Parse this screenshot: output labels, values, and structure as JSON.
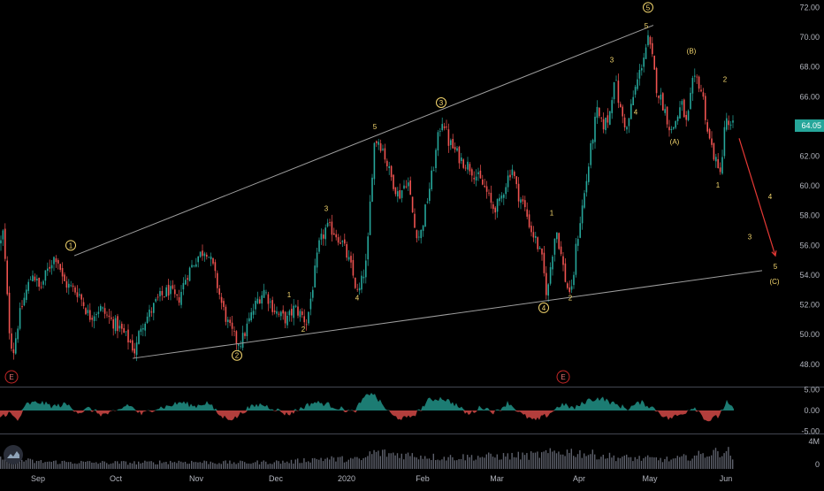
{
  "colors": {
    "background": "#000000",
    "up": "#26a69a",
    "down": "#ef5350",
    "wave": "#f5d76e",
    "trendline": "#9e9e9e",
    "projection": "#e53935",
    "price_badge": "#26a69a",
    "axis_text": "#b2b5be"
  },
  "icons": {
    "logo": "tradingview-logo-icon",
    "earnings": "earnings-E-icon"
  },
  "current_price": "64.05",
  "earnings_marker": "E",
  "chart_data": [
    {
      "type": "candlestick",
      "ylim": [
        46.5,
        72.5
      ],
      "x_labels": [
        "Sep",
        "Oct",
        "Nov",
        "Dec",
        "2020",
        "Feb",
        "Mar",
        "Apr",
        "May",
        "Jun"
      ],
      "y_ticks": [
        "72.00",
        "70.00",
        "68.00",
        "66.00",
        "64.00",
        "62.00",
        "60.00",
        "58.00",
        "56.00",
        "54.00",
        "52.00",
        "50.00",
        "48.00"
      ],
      "price_path": [
        [
          0,
          56.2
        ],
        [
          3,
          57.0
        ],
        [
          6,
          53.5
        ],
        [
          10,
          50.0
        ],
        [
          14,
          48.8
        ],
        [
          20,
          51.0
        ],
        [
          28,
          52.8
        ],
        [
          36,
          54.2
        ],
        [
          44,
          53.0
        ],
        [
          52,
          54.2
        ],
        [
          58,
          55.0
        ],
        [
          62,
          55.3
        ],
        [
          66,
          54.8
        ],
        [
          70,
          53.6
        ],
        [
          78,
          53.2
        ],
        [
          88,
          52.8
        ],
        [
          100,
          51.2
        ],
        [
          112,
          51.8
        ],
        [
          124,
          51.0
        ],
        [
          136,
          50.3
        ],
        [
          146,
          49.5
        ],
        [
          152,
          48.8
        ],
        [
          158,
          50.6
        ],
        [
          168,
          51.4
        ],
        [
          178,
          52.4
        ],
        [
          190,
          53.0
        ],
        [
          200,
          52.2
        ],
        [
          210,
          54.0
        ],
        [
          222,
          55.2
        ],
        [
          232,
          55.8
        ],
        [
          240,
          54.5
        ],
        [
          250,
          52.0
        ],
        [
          258,
          50.5
        ],
        [
          266,
          49.6
        ],
        [
          272,
          49.5
        ],
        [
          280,
          50.8
        ],
        [
          290,
          52.3
        ],
        [
          298,
          53.0
        ],
        [
          306,
          52.0
        ],
        [
          314,
          51.3
        ],
        [
          324,
          51.0
        ],
        [
          332,
          51.8
        ],
        [
          340,
          51.3
        ],
        [
          346,
          50.8
        ],
        [
          352,
          53.0
        ],
        [
          360,
          56.0
        ],
        [
          368,
          57.2
        ],
        [
          376,
          57.0
        ],
        [
          386,
          56.2
        ],
        [
          396,
          54.5
        ],
        [
          404,
          52.6
        ],
        [
          414,
          55.0
        ],
        [
          418,
          59.2
        ],
        [
          422,
          62.8
        ],
        [
          426,
          63.2
        ],
        [
          432,
          62.5
        ],
        [
          440,
          60.8
        ],
        [
          450,
          59.3
        ],
        [
          460,
          60.5
        ],
        [
          468,
          57.2
        ],
        [
          474,
          56.5
        ],
        [
          482,
          59.0
        ],
        [
          490,
          61.5
        ],
        [
          496,
          63.8
        ],
        [
          500,
          64.6
        ],
        [
          506,
          63.0
        ],
        [
          512,
          62.5
        ],
        [
          520,
          61.8
        ],
        [
          530,
          61.3
        ],
        [
          540,
          60.5
        ],
        [
          548,
          59.8
        ],
        [
          556,
          58.5
        ],
        [
          564,
          58.8
        ],
        [
          570,
          60.0
        ],
        [
          578,
          61.3
        ],
        [
          584,
          59.6
        ],
        [
          592,
          58.6
        ],
        [
          600,
          57.0
        ],
        [
          606,
          56.2
        ],
        [
          612,
          55.0
        ],
        [
          618,
          52.5
        ],
        [
          622,
          54.8
        ],
        [
          628,
          57.2
        ],
        [
          634,
          55.2
        ],
        [
          640,
          53.2
        ],
        [
          646,
          52.8
        ],
        [
          650,
          55.6
        ],
        [
          656,
          58.0
        ],
        [
          662,
          60.2
        ],
        [
          668,
          62.8
        ],
        [
          674,
          65.0
        ],
        [
          680,
          64.0
        ],
        [
          688,
          64.6
        ],
        [
          694,
          67.5
        ],
        [
          700,
          65.2
        ],
        [
          708,
          63.8
        ],
        [
          716,
          66.2
        ],
        [
          722,
          67.5
        ],
        [
          728,
          69.0
        ],
        [
          732,
          69.8
        ],
        [
          736,
          68.8
        ],
        [
          742,
          66.5
        ],
        [
          750,
          65.3
        ],
        [
          758,
          63.6
        ],
        [
          764,
          64.5
        ],
        [
          770,
          65.5
        ],
        [
          776,
          64.0
        ],
        [
          782,
          66.8
        ],
        [
          788,
          67.2
        ],
        [
          794,
          66.0
        ],
        [
          800,
          63.4
        ],
        [
          806,
          62.2
        ],
        [
          812,
          60.8
        ],
        [
          816,
          62.0
        ],
        [
          820,
          64.8
        ],
        [
          824,
          63.6
        ],
        [
          828,
          64.1
        ]
      ],
      "volume_profile": [
        [
          0,
          0.55
        ],
        [
          40,
          0.35
        ],
        [
          120,
          0.3
        ],
        [
          160,
          0.3
        ],
        [
          200,
          0.35
        ],
        [
          270,
          0.3
        ],
        [
          330,
          0.35
        ],
        [
          360,
          0.5
        ],
        [
          410,
          0.45
        ],
        [
          420,
          0.8
        ],
        [
          500,
          0.55
        ],
        [
          600,
          0.65
        ],
        [
          640,
          0.85
        ],
        [
          700,
          0.55
        ],
        [
          760,
          0.45
        ],
        [
          822,
          0.9
        ],
        [
          828,
          0.5
        ]
      ],
      "wave_labels": [
        "1",
        "2",
        "3",
        "4",
        "5",
        "1",
        "2",
        "3",
        "4",
        "5",
        "A",
        "B",
        "C",
        "1",
        "2",
        "3",
        "4",
        "5",
        "(A)",
        "(B)",
        "(C)"
      ],
      "circled_waves": [
        {
          "label": "1",
          "x": 80,
          "price": 56.0
        },
        {
          "label": "2",
          "x": 268,
          "price": 48.6
        },
        {
          "label": "3",
          "x": 499,
          "price": 65.6
        },
        {
          "label": "4",
          "x": 615,
          "price": 51.8
        },
        {
          "label": "5",
          "x": 733,
          "price": 72.0
        }
      ],
      "minor_waves": [
        {
          "label": "1",
          "x": 327,
          "price": 52.5
        },
        {
          "label": "2",
          "x": 343,
          "price": 50.2
        },
        {
          "label": "3",
          "x": 369,
          "price": 58.3
        },
        {
          "label": "4",
          "x": 404,
          "price": 52.3
        },
        {
          "label": "5",
          "x": 424,
          "price": 63.8
        },
        {
          "label": "1",
          "x": 624,
          "price": 58.0
        },
        {
          "label": "2",
          "x": 645,
          "price": 52.3
        },
        {
          "label": "3",
          "x": 692,
          "price": 68.3
        },
        {
          "label": "4",
          "x": 719,
          "price": 64.8
        },
        {
          "label": "5",
          "x": 731,
          "price": 70.6
        },
        {
          "label": "(A)",
          "x": 763,
          "price": 62.8
        },
        {
          "label": "(B)",
          "x": 782,
          "price": 68.9
        },
        {
          "label": "1",
          "x": 812,
          "price": 59.9
        },
        {
          "label": "2",
          "x": 820,
          "price": 67.0
        },
        {
          "label": "4",
          "x": 871,
          "price": 59.1
        },
        {
          "label": "3",
          "x": 848,
          "price": 56.4
        },
        {
          "label": "5",
          "x": 877,
          "price": 54.4
        },
        {
          "label": "(C)",
          "x": 876,
          "price": 53.4
        }
      ],
      "trendlines": [
        {
          "name": "upper-channel",
          "from": [
            84,
            55.3
          ],
          "to": [
            739,
            70.8
          ]
        },
        {
          "name": "lower-channel",
          "from": [
            150,
            48.4
          ],
          "to": [
            862,
            54.3
          ]
        }
      ],
      "projection": {
        "from": [
          836,
          63.2
        ],
        "to": [
          877,
          55.3
        ]
      },
      "earnings_markers_x": [
        13,
        637
      ]
    },
    {
      "type": "area",
      "name": "oscillator",
      "ylim": [
        -5.5,
        5.5
      ],
      "y_ticks": [
        "5.00",
        "0.00",
        "-5.00"
      ],
      "profile": [
        [
          0,
          -1.5
        ],
        [
          10,
          -0.5
        ],
        [
          20,
          -2.5
        ],
        [
          30,
          1.5
        ],
        [
          45,
          2.0
        ],
        [
          60,
          1.0
        ],
        [
          75,
          1.5
        ],
        [
          90,
          -0.5
        ],
        [
          100,
          0.5
        ],
        [
          115,
          -1.0
        ],
        [
          130,
          -0.5
        ],
        [
          145,
          1.5
        ],
        [
          160,
          -1.0
        ],
        [
          175,
          0.5
        ],
        [
          190,
          1.0
        ],
        [
          205,
          2.0
        ],
        [
          220,
          1.0
        ],
        [
          235,
          2.0
        ],
        [
          250,
          -1.5
        ],
        [
          265,
          -2.0
        ],
        [
          280,
          0.5
        ],
        [
          295,
          1.5
        ],
        [
          310,
          0.5
        ],
        [
          325,
          -1.0
        ],
        [
          340,
          0.5
        ],
        [
          355,
          2.0
        ],
        [
          370,
          1.5
        ],
        [
          385,
          0.5
        ],
        [
          400,
          -0.5
        ],
        [
          410,
          2.5
        ],
        [
          420,
          4.5
        ],
        [
          432,
          1.5
        ],
        [
          445,
          -1.5
        ],
        [
          460,
          -2.0
        ],
        [
          472,
          -0.5
        ],
        [
          485,
          2.5
        ],
        [
          500,
          3.0
        ],
        [
          515,
          1.5
        ],
        [
          530,
          -1.0
        ],
        [
          545,
          1.0
        ],
        [
          560,
          -0.5
        ],
        [
          575,
          2.0
        ],
        [
          590,
          -1.0
        ],
        [
          605,
          -2.5
        ],
        [
          620,
          -1.0
        ],
        [
          635,
          1.5
        ],
        [
          650,
          0.5
        ],
        [
          665,
          2.5
        ],
        [
          680,
          3.0
        ],
        [
          695,
          1.5
        ],
        [
          710,
          0.5
        ],
        [
          725,
          2.0
        ],
        [
          740,
          0.5
        ],
        [
          755,
          -2.0
        ],
        [
          770,
          -1.0
        ],
        [
          785,
          1.0
        ],
        [
          800,
          -2.5
        ],
        [
          812,
          -1.5
        ],
        [
          822,
          2.0
        ],
        [
          830,
          0.0
        ]
      ]
    },
    {
      "type": "bar",
      "name": "volume",
      "y_ticks": [
        "4M",
        "0"
      ]
    }
  ]
}
